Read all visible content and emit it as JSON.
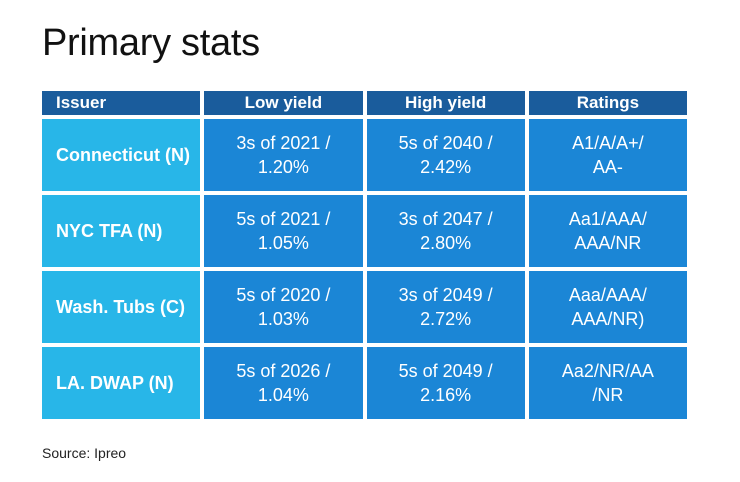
{
  "title": "Primary stats",
  "source": "Source: Ipreo",
  "colors": {
    "header_bg": "#1a5c9c",
    "issuer_bg": "#28b6e8",
    "value_bg": "#1b86d6",
    "text_on_cells": "#ffffff"
  },
  "chart_data": {
    "type": "table",
    "title": "Primary stats",
    "columns": [
      "Issuer",
      "Low yield",
      "High yield",
      "Ratings"
    ],
    "rows": [
      {
        "issuer": "Connecticut (N)",
        "low_yield": [
          "3s of 2021 /",
          "1.20%"
        ],
        "high_yield": [
          "5s of 2040 /",
          "2.42%"
        ],
        "ratings": [
          "A1/A/A+/",
          "AA-"
        ]
      },
      {
        "issuer": "NYC TFA (N)",
        "low_yield": [
          "5s of 2021 /",
          "1.05%"
        ],
        "high_yield": [
          "3s of 2047 /",
          "2.80%"
        ],
        "ratings": [
          "Aa1/AAA/",
          "AAA/NR"
        ]
      },
      {
        "issuer": "Wash. Tubs (C)",
        "low_yield": [
          "5s of 2020 /",
          "1.03%"
        ],
        "high_yield": [
          "3s of 2049 /",
          "2.72%"
        ],
        "ratings": [
          "Aaa/AAA/",
          "AAA/NR)"
        ]
      },
      {
        "issuer": "LA. DWAP (N)",
        "low_yield": [
          "5s of 2026 /",
          "1.04%"
        ],
        "high_yield": [
          "5s of 2049 /",
          "2.16%"
        ],
        "ratings": [
          "Aa2/NR/AA",
          "/NR"
        ]
      }
    ],
    "source": "Source: Ipreo"
  }
}
